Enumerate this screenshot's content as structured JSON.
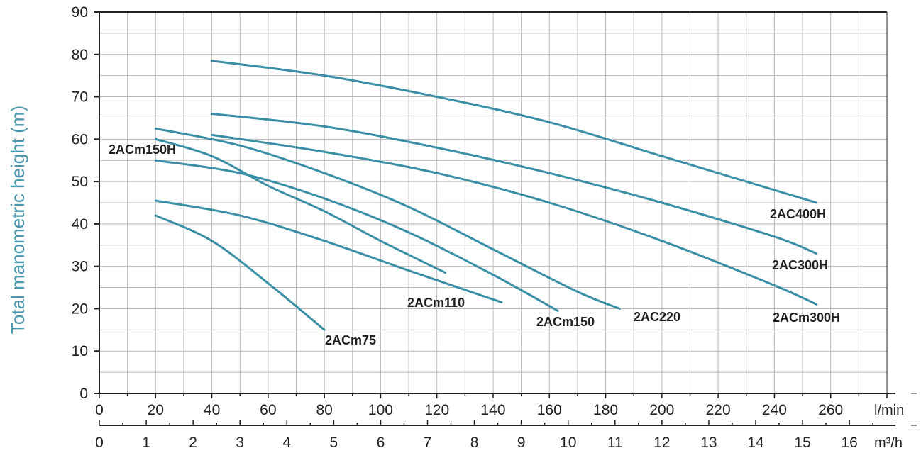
{
  "chart_data": {
    "type": "line",
    "ylabel": "Total manometric height (m)",
    "x_unit": "l/min",
    "x2_unit": "m³/h",
    "ylim": [
      0,
      90
    ],
    "xlim": [
      0,
      280
    ],
    "x2lim": [
      0,
      16.8
    ],
    "y_ticks": [
      "0",
      "10",
      "20",
      "30",
      "40",
      "50",
      "60",
      "70",
      "80",
      "90"
    ],
    "x_ticks": [
      "0",
      "20",
      "40",
      "60",
      "80",
      "100",
      "120",
      "140",
      "160",
      "180",
      "200",
      "220",
      "240",
      "260"
    ],
    "x2_ticks": [
      "0",
      "1",
      "2",
      "3",
      "4",
      "5",
      "6",
      "7",
      "8",
      "9",
      "10",
      "11",
      "12",
      "13",
      "14",
      "15",
      "16"
    ],
    "grid": true,
    "colors": {
      "curve": "#3a8fa6",
      "axis": "#222222",
      "grid": "#b9b9b9",
      "ylabel": "#4a98ad"
    },
    "series": [
      {
        "name": "2ACm75",
        "x": [
          20,
          40,
          60,
          80
        ],
        "y": [
          42,
          36,
          26,
          15
        ]
      },
      {
        "name": "2ACm110",
        "x": [
          20,
          50,
          80,
          110,
          143
        ],
        "y": [
          45.5,
          42,
          36,
          29,
          21.5
        ]
      },
      {
        "name": "2ACm150H",
        "x": [
          20,
          40,
          60,
          80,
          100,
          123
        ],
        "y": [
          60,
          56,
          49,
          43,
          36,
          28.5
        ]
      },
      {
        "name": "2ACm150",
        "x": [
          20,
          50,
          80,
          110,
          140,
          163
        ],
        "y": [
          55,
          52,
          46,
          38,
          28,
          19.5
        ]
      },
      {
        "name": "2AC220",
        "x": [
          20,
          50,
          80,
          110,
          140,
          170,
          185
        ],
        "y": [
          62.5,
          58.5,
          52,
          44,
          34,
          24,
          20
        ]
      },
      {
        "name": "2ACm300H",
        "x": [
          40,
          80,
          120,
          160,
          200,
          240,
          255
        ],
        "y": [
          61,
          57,
          52,
          45,
          36,
          25.5,
          21
        ]
      },
      {
        "name": "2AC300H",
        "x": [
          40,
          80,
          120,
          160,
          200,
          240,
          255
        ],
        "y": [
          66,
          63,
          58,
          52,
          45,
          37,
          33
        ]
      },
      {
        "name": "2AC400H",
        "x": [
          40,
          80,
          120,
          160,
          200,
          240,
          255
        ],
        "y": [
          78.5,
          75,
          70,
          64,
          56,
          48,
          45
        ]
      }
    ]
  }
}
